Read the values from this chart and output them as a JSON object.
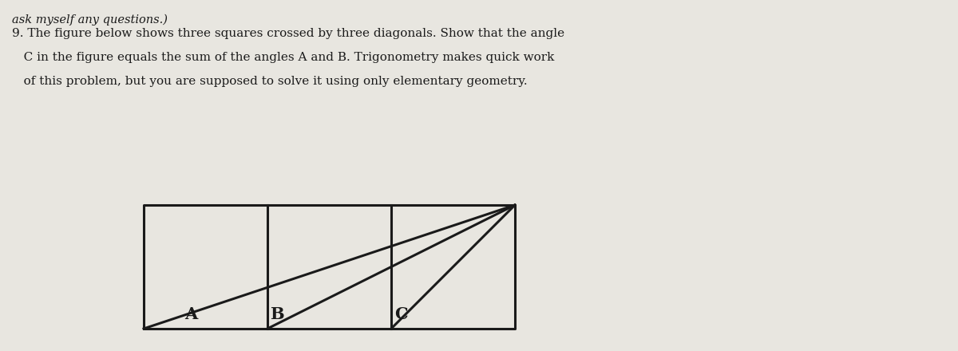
{
  "bg_color": "#e8e6e0",
  "line_color": "#1a1a1a",
  "text_color": "#1a1a1a",
  "square_side": 1.0,
  "num_squares": 3,
  "fig_width": 12.0,
  "fig_height": 4.4,
  "label_A": "A",
  "label_B": "B",
  "label_C": "C",
  "text_fontsize": 15,
  "line_width": 2.2,
  "header_text_lines": [
    "ask myself any questions.)",
    "9. The figure below shows three squares crossed by three diagonals. Show that the angle",
    "   C in the figure equals the sum of the angles A and B. Trigonometry makes quick work",
    "   of this problem, but you are supposed to solve it using only elementary geometry."
  ],
  "header_fontsizes": [
    11,
    11,
    11,
    11
  ]
}
